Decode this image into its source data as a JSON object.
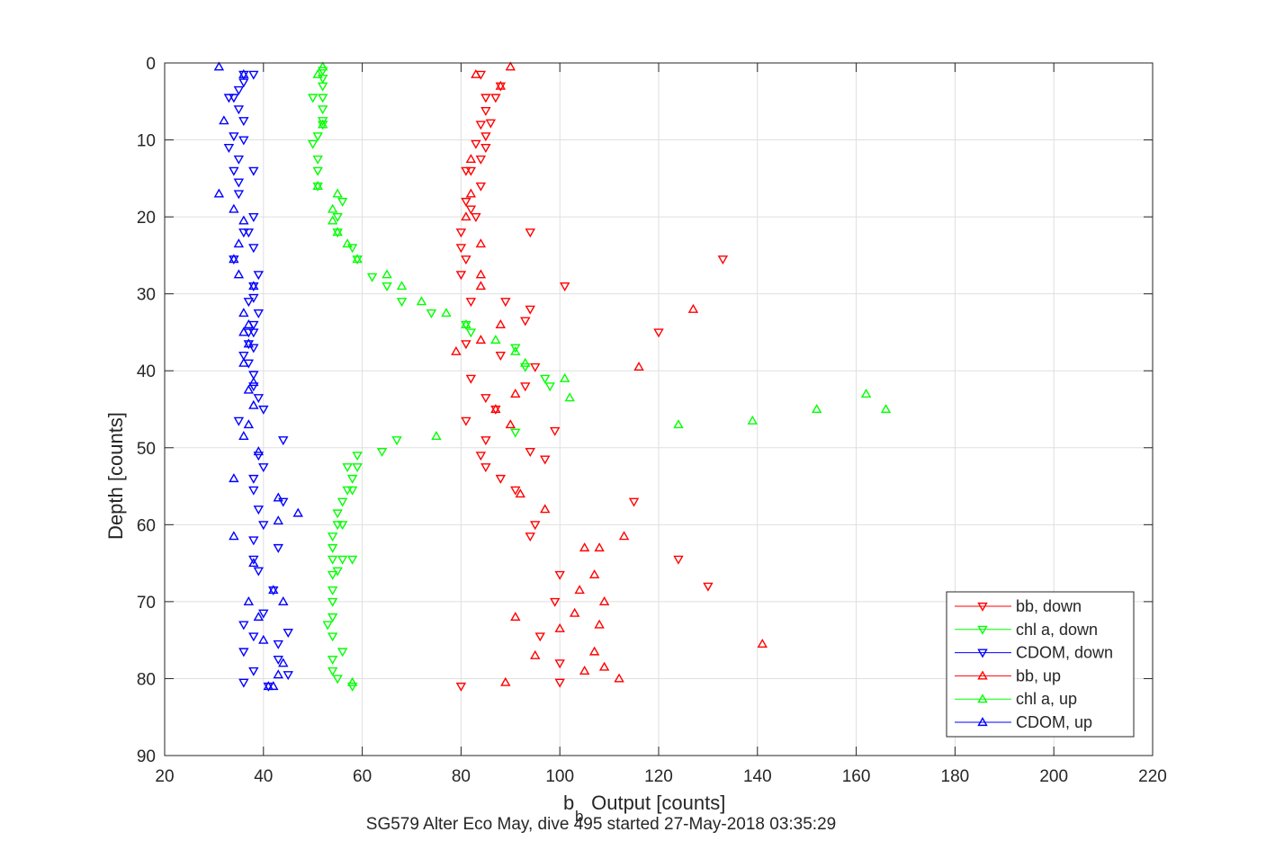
{
  "chart_data": {
    "type": "scatter",
    "title": "",
    "xlabel_main": "b",
    "xlabel_sub": "b",
    "xlabel_rest": " Output [counts]",
    "ylabel": "Depth [counts]",
    "caption": "SG579 Alter Eco May, dive 495 started 27-May-2018 03:35:29",
    "xlim": [
      20,
      220
    ],
    "ylim": [
      0,
      90
    ],
    "y_reversed": true,
    "grid": true,
    "legend_position": "bottom-right",
    "x_ticks": [
      20,
      40,
      60,
      80,
      100,
      120,
      140,
      160,
      180,
      200,
      220
    ],
    "y_ticks": [
      0,
      10,
      20,
      30,
      40,
      50,
      60,
      70,
      80,
      90
    ],
    "series": [
      {
        "name": "bb, down",
        "color": "#ff0000",
        "marker": "triangle-down",
        "points": [
          [
            84,
            1.5
          ],
          [
            88,
            3
          ],
          [
            85,
            4.5
          ],
          [
            87,
            4.5
          ],
          [
            85,
            6.2
          ],
          [
            86,
            7.8
          ],
          [
            84,
            8
          ],
          [
            85,
            9.5
          ],
          [
            83,
            10.5
          ],
          [
            85,
            11
          ],
          [
            84,
            12.5
          ],
          [
            81,
            14
          ],
          [
            82,
            14
          ],
          [
            84,
            16
          ],
          [
            81,
            18
          ],
          [
            82,
            19
          ],
          [
            83,
            20
          ],
          [
            94,
            22
          ],
          [
            80,
            22
          ],
          [
            80,
            24
          ],
          [
            133,
            25.5
          ],
          [
            81,
            25.5
          ],
          [
            80,
            27.5
          ],
          [
            101,
            29
          ],
          [
            89,
            31
          ],
          [
            82,
            31
          ],
          [
            94,
            32
          ],
          [
            93,
            33.5
          ],
          [
            120,
            35
          ],
          [
            81,
            36.5
          ],
          [
            88,
            38
          ],
          [
            95,
            39.5
          ],
          [
            82,
            41
          ],
          [
            93,
            42
          ],
          [
            85,
            43.5
          ],
          [
            87,
            45
          ],
          [
            81,
            46.5
          ],
          [
            99,
            47.8
          ],
          [
            85,
            49
          ],
          [
            94,
            50.5
          ],
          [
            84,
            51
          ],
          [
            97,
            51.5
          ],
          [
            85,
            52.5
          ],
          [
            88,
            54
          ],
          [
            91,
            55.5
          ],
          [
            115,
            57
          ],
          [
            95,
            60
          ],
          [
            94,
            61.5
          ],
          [
            124,
            64.5
          ],
          [
            100,
            66.5
          ],
          [
            130,
            68
          ],
          [
            99,
            70
          ],
          [
            96,
            74.5
          ],
          [
            100,
            78
          ],
          [
            100,
            80.5
          ],
          [
            80,
            81
          ]
        ]
      },
      {
        "name": "chl a, down",
        "color": "#00ff00",
        "marker": "triangle-down",
        "points": [
          [
            52,
            1
          ],
          [
            52,
            2
          ],
          [
            52,
            3
          ],
          [
            50,
            4.5
          ],
          [
            52,
            4.5
          ],
          [
            52,
            6
          ],
          [
            52,
            7.5
          ],
          [
            52,
            8
          ],
          [
            51,
            9.5
          ],
          [
            50,
            10.5
          ],
          [
            51,
            12.5
          ],
          [
            51,
            14
          ],
          [
            51,
            16
          ],
          [
            56,
            18
          ],
          [
            55,
            20
          ],
          [
            55,
            22
          ],
          [
            58,
            24
          ],
          [
            59,
            25.5
          ],
          [
            62,
            27.8
          ],
          [
            65,
            29
          ],
          [
            68,
            31
          ],
          [
            74,
            32.5
          ],
          [
            81,
            34
          ],
          [
            82,
            35
          ],
          [
            91,
            37
          ],
          [
            93,
            39.5
          ],
          [
            97,
            41
          ],
          [
            98,
            42
          ],
          [
            91,
            48
          ],
          [
            67,
            49
          ],
          [
            64,
            50.5
          ],
          [
            59,
            51
          ],
          [
            57,
            52.5
          ],
          [
            59,
            52.5
          ],
          [
            58,
            54
          ],
          [
            58,
            55.5
          ],
          [
            57,
            55.5
          ],
          [
            56,
            57
          ],
          [
            55,
            58.5
          ],
          [
            55,
            60
          ],
          [
            56,
            60
          ],
          [
            54,
            61.5
          ],
          [
            54,
            63
          ],
          [
            54,
            64.5
          ],
          [
            58,
            64.5
          ],
          [
            56,
            64.5
          ],
          [
            55,
            66
          ],
          [
            54,
            66.5
          ],
          [
            54,
            68.5
          ],
          [
            54,
            70
          ],
          [
            54,
            72
          ],
          [
            53,
            73
          ],
          [
            54,
            74.5
          ],
          [
            56,
            76.5
          ],
          [
            54,
            77.5
          ],
          [
            54,
            79
          ],
          [
            55,
            80
          ],
          [
            58,
            81
          ]
        ]
      },
      {
        "name": "CDOM, down",
        "color": "#0000ff",
        "marker": "triangle-down",
        "points": [
          [
            36,
            1.5
          ],
          [
            38,
            1.5
          ],
          [
            36,
            2.5
          ],
          [
            35,
            3.5
          ],
          [
            34,
            4.5
          ],
          [
            33,
            4.5
          ],
          [
            35,
            6
          ],
          [
            36,
            7.5
          ],
          [
            34,
            9.5
          ],
          [
            36,
            10
          ],
          [
            33,
            11
          ],
          [
            35,
            12.5
          ],
          [
            34,
            14
          ],
          [
            38,
            14
          ],
          [
            35,
            15.5
          ],
          [
            35,
            17
          ],
          [
            38,
            20
          ],
          [
            36,
            22
          ],
          [
            37,
            22
          ],
          [
            38,
            24
          ],
          [
            34,
            25.5
          ],
          [
            39,
            27.5
          ],
          [
            38,
            29
          ],
          [
            38,
            30.5
          ],
          [
            37,
            31
          ],
          [
            39,
            32.5
          ],
          [
            38,
            34
          ],
          [
            37,
            35
          ],
          [
            38,
            35
          ],
          [
            37,
            36.5
          ],
          [
            38,
            37
          ],
          [
            36,
            38
          ],
          [
            37,
            39
          ],
          [
            38,
            40.5
          ],
          [
            38,
            42
          ],
          [
            39,
            43.5
          ],
          [
            40,
            45
          ],
          [
            35,
            46.5
          ],
          [
            44,
            49
          ],
          [
            39,
            51
          ],
          [
            40,
            52.5
          ],
          [
            38,
            54
          ],
          [
            38,
            55.5
          ],
          [
            44,
            57
          ],
          [
            39,
            58
          ],
          [
            40,
            60
          ],
          [
            38,
            62
          ],
          [
            43,
            63
          ],
          [
            38,
            64.5
          ],
          [
            39,
            66
          ],
          [
            42,
            68.5
          ],
          [
            40,
            71.5
          ],
          [
            36,
            73
          ],
          [
            45,
            74
          ],
          [
            38,
            74.5
          ],
          [
            43,
            75.5
          ],
          [
            36,
            76.5
          ],
          [
            43,
            77.5
          ],
          [
            38,
            79
          ],
          [
            45,
            79.5
          ],
          [
            36,
            80.5
          ],
          [
            41,
            81
          ]
        ]
      },
      {
        "name": "bb, up",
        "color": "#ff0000",
        "marker": "triangle-up",
        "points": [
          [
            90,
            0.5
          ],
          [
            83,
            1.5
          ],
          [
            88,
            3
          ],
          [
            82,
            12.5
          ],
          [
            82,
            17
          ],
          [
            81,
            20
          ],
          [
            84,
            23.5
          ],
          [
            84,
            27.5
          ],
          [
            84,
            29
          ],
          [
            127,
            32
          ],
          [
            88,
            34
          ],
          [
            84,
            36
          ],
          [
            79,
            37.5
          ],
          [
            116,
            39.5
          ],
          [
            91,
            43
          ],
          [
            87,
            45
          ],
          [
            90,
            47
          ],
          [
            92,
            56
          ],
          [
            97,
            58
          ],
          [
            113,
            61.5
          ],
          [
            105,
            63
          ],
          [
            108,
            63
          ],
          [
            107,
            66.5
          ],
          [
            104,
            68.5
          ],
          [
            109,
            70
          ],
          [
            103,
            71.5
          ],
          [
            91,
            72
          ],
          [
            108,
            73
          ],
          [
            100,
            73.5
          ],
          [
            141,
            75.5
          ],
          [
            107,
            76.5
          ],
          [
            95,
            77
          ],
          [
            109,
            78.5
          ],
          [
            105,
            79
          ],
          [
            112,
            80
          ],
          [
            89,
            80.5
          ]
        ]
      },
      {
        "name": "chl a, up",
        "color": "#00ff00",
        "marker": "triangle-up",
        "points": [
          [
            52,
            0.5
          ],
          [
            51,
            1.5
          ],
          [
            52,
            8
          ],
          [
            51,
            16
          ],
          [
            55,
            17
          ],
          [
            54,
            19
          ],
          [
            54,
            20.5
          ],
          [
            55,
            22
          ],
          [
            57,
            23.5
          ],
          [
            59,
            25.5
          ],
          [
            65,
            27.5
          ],
          [
            68,
            29
          ],
          [
            72,
            31
          ],
          [
            77,
            32.5
          ],
          [
            81,
            34
          ],
          [
            87,
            36
          ],
          [
            91,
            37.5
          ],
          [
            93,
            39
          ],
          [
            101,
            41
          ],
          [
            102,
            43.5
          ],
          [
            162,
            43
          ],
          [
            152,
            45
          ],
          [
            166,
            45
          ],
          [
            139,
            46.5
          ],
          [
            124,
            47
          ],
          [
            75,
            48.5
          ],
          [
            58,
            80.5
          ]
        ]
      },
      {
        "name": "CDOM, up",
        "color": "#0000ff",
        "marker": "triangle-up",
        "points": [
          [
            31,
            0.5
          ],
          [
            36,
            1.5
          ],
          [
            32,
            7.5
          ],
          [
            31,
            17
          ],
          [
            34,
            19
          ],
          [
            36,
            20.5
          ],
          [
            35,
            23.5
          ],
          [
            34,
            25.5
          ],
          [
            35,
            27.5
          ],
          [
            38,
            29
          ],
          [
            36,
            32.5
          ],
          [
            37,
            34
          ],
          [
            36,
            35
          ],
          [
            37,
            36.5
          ],
          [
            36,
            39
          ],
          [
            38,
            41.5
          ],
          [
            37,
            42.5
          ],
          [
            38,
            44.5
          ],
          [
            37,
            47
          ],
          [
            36,
            48.5
          ],
          [
            39,
            50.5
          ],
          [
            34,
            54
          ],
          [
            43,
            56.5
          ],
          [
            47,
            58.5
          ],
          [
            43,
            59.5
          ],
          [
            34,
            61.5
          ],
          [
            38,
            65
          ],
          [
            42,
            68.5
          ],
          [
            44,
            70
          ],
          [
            37,
            70
          ],
          [
            39,
            72
          ],
          [
            40,
            75
          ],
          [
            44,
            78
          ],
          [
            43,
            79.5
          ],
          [
            41,
            81
          ],
          [
            42,
            81
          ]
        ]
      }
    ]
  }
}
